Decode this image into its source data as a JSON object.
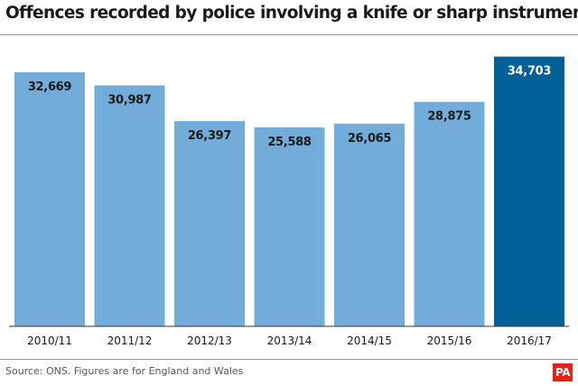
{
  "chart_data": {
    "type": "bar",
    "title": "Offences recorded by police involving a knife or sharp instrument",
    "categories": [
      "2010/11",
      "2011/12",
      "2012/13",
      "2013/14",
      "2014/15",
      "2015/16",
      "2016/17"
    ],
    "values": [
      32669,
      30987,
      26397,
      25588,
      26065,
      28875,
      34703
    ],
    "value_labels": [
      "32,669",
      "30,987",
      "26,397",
      "25,588",
      "26,065",
      "28,875",
      "34,703"
    ],
    "ylim": [
      0,
      35000
    ],
    "xlabel": "",
    "ylabel": "",
    "grid": false,
    "legend": "none",
    "colors": {
      "bar": "#72acd9",
      "highlight": "#006097",
      "label_dark": "#1a1a1a",
      "label_light": "#ffffff"
    },
    "highlight_index": 6
  },
  "source": "Source: ONS. Figures are for England and Wales",
  "logo_text": "PA"
}
